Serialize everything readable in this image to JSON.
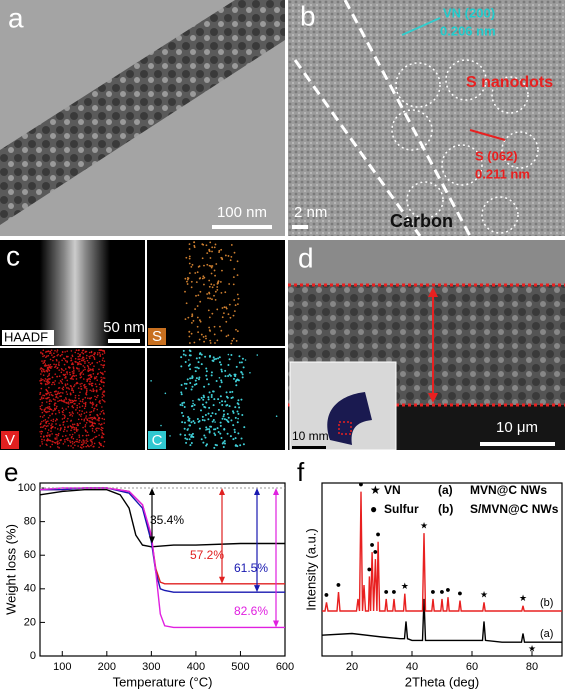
{
  "panels": {
    "a": {
      "label": "a",
      "scale": "100 nm"
    },
    "b": {
      "label": "b",
      "vn": "VN (200)",
      "vn_d": "0.206 nm",
      "dots": "S nanodots",
      "s": "S (062)",
      "s_d": "0.211 nm",
      "scale": "2 nm",
      "carbon": "Carbon"
    },
    "c": {
      "label": "c",
      "haadf": "HAADF",
      "scale": "50 nm",
      "s": "S",
      "v": "V",
      "c": "C"
    },
    "d": {
      "label": "d",
      "inset_scale": "10 mm",
      "scale": "10 μm"
    },
    "e": {
      "label": "e"
    },
    "f": {
      "label": "f"
    }
  },
  "chart_data": [
    {
      "type": "line",
      "xlabel": "Temperature (°C)",
      "ylabel": "Weight loss (%)",
      "xlim": [
        50,
        600
      ],
      "ylim": [
        0,
        103
      ],
      "xticks": [
        100,
        200,
        300,
        400,
        500,
        600
      ],
      "yticks": [
        0,
        20,
        40,
        60,
        80,
        100
      ],
      "series": [
        {
          "color": "#000000",
          "label": "35.4%",
          "x": [
            50,
            100,
            150,
            200,
            230,
            250,
            265,
            280,
            300,
            350,
            400,
            500,
            600
          ],
          "values": [
            96,
            98,
            99,
            99,
            96,
            88,
            72,
            66,
            65,
            66,
            66,
            67,
            67
          ]
        },
        {
          "color": "#e02020",
          "label": "57.2%",
          "x": [
            50,
            100,
            150,
            200,
            250,
            280,
            300,
            310,
            320,
            330,
            350,
            400,
            500,
            600
          ],
          "values": [
            99,
            99,
            100,
            100,
            98,
            90,
            70,
            52,
            44,
            43,
            43,
            43,
            43,
            43
          ]
        },
        {
          "color": "#1818b0",
          "label": "61.5%",
          "x": [
            50,
            100,
            150,
            200,
            250,
            280,
            300,
            310,
            320,
            330,
            350,
            400,
            500,
            600
          ],
          "values": [
            99,
            99,
            100,
            100,
            97,
            88,
            68,
            50,
            40,
            39,
            38,
            38,
            38,
            38
          ]
        },
        {
          "color": "#e020e0",
          "label": "82.6%",
          "x": [
            50,
            100,
            150,
            200,
            250,
            280,
            300,
            310,
            320,
            330,
            350,
            400,
            500,
            600
          ],
          "values": [
            99,
            100,
            100,
            100,
            98,
            90,
            72,
            50,
            25,
            18,
            17,
            17,
            17,
            17
          ]
        }
      ]
    },
    {
      "type": "line",
      "xlabel": "2Theta (deg)",
      "ylabel": "Intensity (a.u.)",
      "xlim": [
        10,
        90
      ],
      "ylim": [
        0,
        100
      ],
      "xticks": [
        20,
        40,
        60,
        80
      ],
      "marker_legend": [
        {
          "symbol": "★",
          "text": "VN",
          "x": [
            37.6,
            44,
            64,
            77,
            80
          ]
        },
        {
          "symbol": "●",
          "text": "Sulfur",
          "x": [
            11.5,
            15.5,
            23,
            25.8,
            26.7,
            27.8,
            28.7,
            31.4,
            34,
            47,
            50,
            52,
            56
          ]
        }
      ],
      "series": [
        {
          "name": "MVN@C NWs",
          "label": "(a)",
          "color": "#000000",
          "x": [
            10,
            20,
            30,
            36,
            37.5,
            38,
            38.5,
            40,
            43.5,
            44,
            44.5,
            50,
            63.5,
            64,
            64.5,
            70,
            76.5,
            77,
            77.5,
            90
          ],
          "values": [
            12,
            13,
            11,
            10,
            10,
            20,
            10,
            9,
            9,
            33,
            9,
            9,
            9,
            20,
            9,
            8,
            8,
            13,
            8,
            8
          ]
        },
        {
          "name": "S/MVN@C NWs",
          "label": "(b)",
          "color": "#e82020",
          "x": [
            10,
            11,
            11.5,
            12,
            15,
            15.5,
            16,
            21.5,
            22,
            22.5,
            23,
            23.5,
            24,
            24.5,
            25.5,
            25.8,
            26.2,
            26.7,
            27.2,
            27.8,
            28.3,
            28.7,
            29.2,
            31,
            31.4,
            31.8,
            33.6,
            34,
            34.4,
            37.2,
            37.6,
            38,
            43.5,
            44,
            44.5,
            46.6,
            47,
            47.4,
            49.6,
            50,
            50.4,
            51.6,
            52,
            52.4,
            55.6,
            56,
            56.4,
            63.6,
            64,
            64.4,
            76.6,
            77,
            77.4,
            90
          ],
          "values": [
            26,
            26,
            31,
            26,
            26,
            37,
            26,
            26,
            33,
            26,
            95,
            26,
            41,
            26,
            26,
            46,
            26,
            60,
            26,
            56,
            26,
            66,
            26,
            26,
            33,
            26,
            26,
            33,
            26,
            26,
            36,
            26,
            26,
            71,
            26,
            26,
            33,
            26,
            26,
            33,
            26,
            26,
            34,
            26,
            26,
            32,
            26,
            26,
            31,
            26,
            26,
            29,
            26,
            26
          ]
        }
      ]
    }
  ]
}
